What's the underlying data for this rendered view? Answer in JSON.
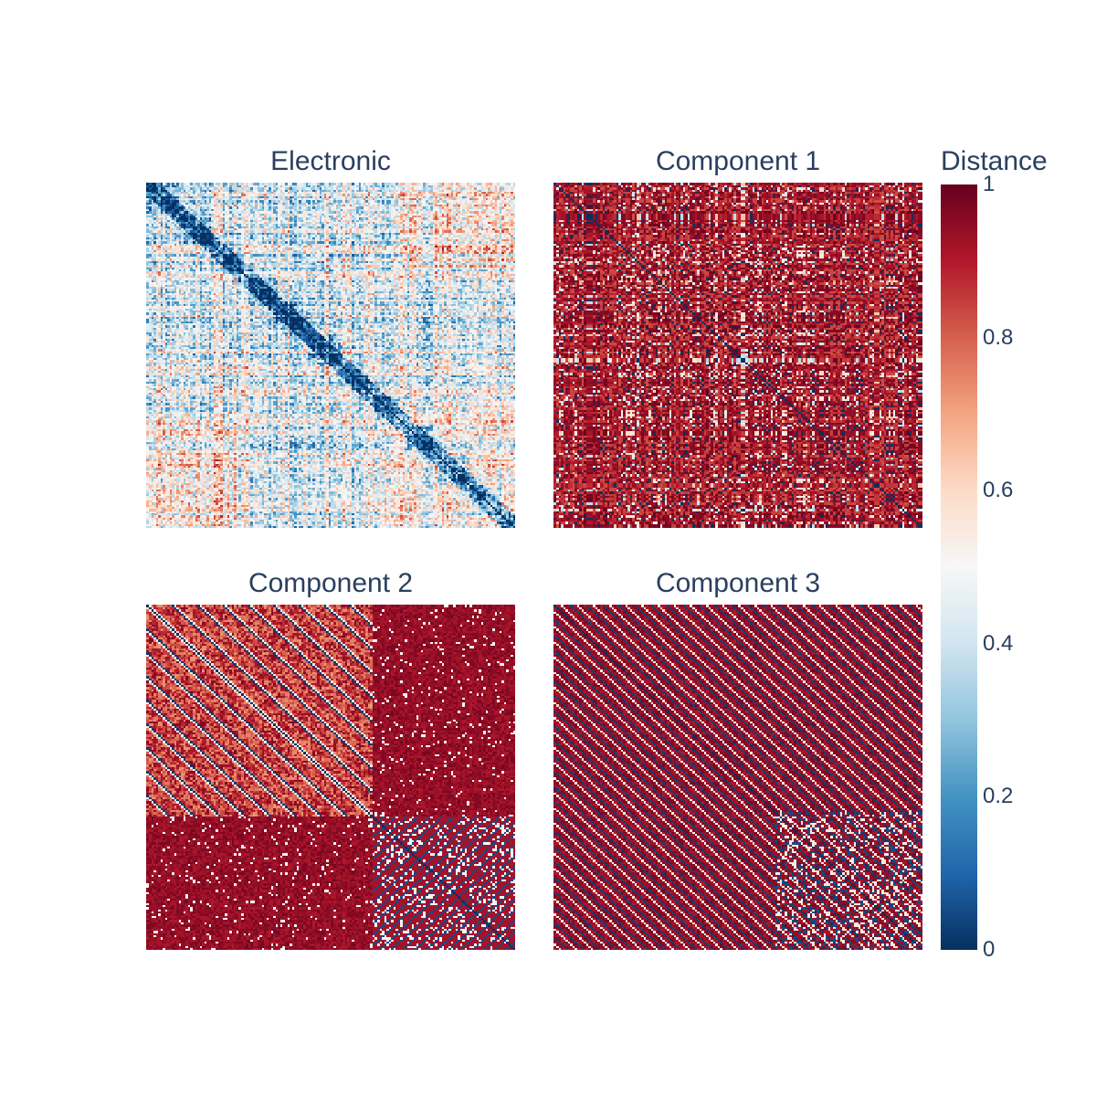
{
  "chart_data": [
    {
      "type": "heatmap",
      "title": "Electronic",
      "pattern": "electronic",
      "n": 160,
      "zlim": [
        0,
        1
      ]
    },
    {
      "type": "heatmap",
      "title": "Component 1",
      "pattern": "component1",
      "n": 160,
      "zlim": [
        0,
        1
      ]
    },
    {
      "type": "heatmap",
      "title": "Component 2",
      "pattern": "component2",
      "n": 160,
      "zlim": [
        0,
        1
      ]
    },
    {
      "type": "heatmap",
      "title": "Component 3",
      "pattern": "component3",
      "n": 160,
      "zlim": [
        0,
        1
      ]
    }
  ],
  "colorbar": {
    "title": "Distance",
    "colorscale": "RdBu_r",
    "ticks": [
      "0",
      "0.2",
      "0.4",
      "0.6",
      "0.8",
      "1"
    ],
    "tick_values": [
      0,
      0.2,
      0.4,
      0.6,
      0.8,
      1
    ],
    "colors": [
      "#053061",
      "#2166ac",
      "#4393c3",
      "#92c5de",
      "#d1e5f0",
      "#f7f7f7",
      "#fddbc7",
      "#f4a582",
      "#d6604d",
      "#b2182b",
      "#67001f"
    ]
  }
}
